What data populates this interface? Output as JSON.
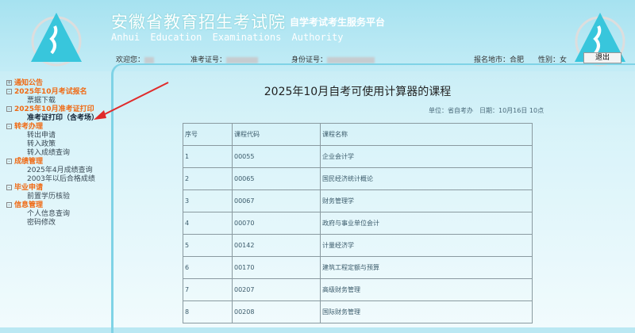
{
  "header": {
    "title": "安徽省教育招生考试院",
    "subtitle": "自学考试考生服务平台",
    "english": "Anhui Education Examinations Authority"
  },
  "user": {
    "welcome_label": "欢迎您：",
    "ticket_label": "准考证号：",
    "id_label": "身份证号：",
    "city_label": "报名地市：",
    "city": "合肥",
    "gender_label": "性别：",
    "gender": "女"
  },
  "logout": "退出",
  "sidebar": [
    {
      "label": "通知公告",
      "sign": "+",
      "items": []
    },
    {
      "label": "2025年10月考试报名",
      "sign": "-",
      "items": [
        "票据下载"
      ]
    },
    {
      "label": "2025年10月准考证打印",
      "sign": "-",
      "items": [
        "准考证打印（含考场）"
      ]
    },
    {
      "label": "转考办理",
      "sign": "-",
      "items": [
        "转出申请",
        "转入政策",
        "转入成绩查询"
      ]
    },
    {
      "label": "成绩管理",
      "sign": "-",
      "items": [
        "2025年4月成绩查询",
        "2003年以后合格成绩"
      ]
    },
    {
      "label": "毕业申请",
      "sign": "-",
      "items": [
        "前置学历核验"
      ]
    },
    {
      "label": "信息管理",
      "sign": "-",
      "items": [
        "个人信息查询",
        "密码修改"
      ]
    }
  ],
  "main": {
    "title": "2025年10月自考可使用计算器的课程",
    "unit_line": "单位：省自考办　日期：10月16日 10点",
    "columns": [
      "序号",
      "课程代码",
      "课程名称"
    ],
    "rows": [
      [
        "1",
        "00055",
        "企业会计学"
      ],
      [
        "2",
        "00065",
        "国民经济统计概论"
      ],
      [
        "3",
        "00067",
        "财务管理学"
      ],
      [
        "4",
        "00070",
        "政府与事业单位会计"
      ],
      [
        "5",
        "00142",
        "计量经济学"
      ],
      [
        "6",
        "00170",
        "建筑工程定额与预算"
      ],
      [
        "7",
        "00207",
        "高级财务管理"
      ],
      [
        "8",
        "00208",
        "国际财务管理"
      ]
    ]
  },
  "colors": {
    "accent": "#f06a14",
    "arrow": "#e02a2a"
  }
}
